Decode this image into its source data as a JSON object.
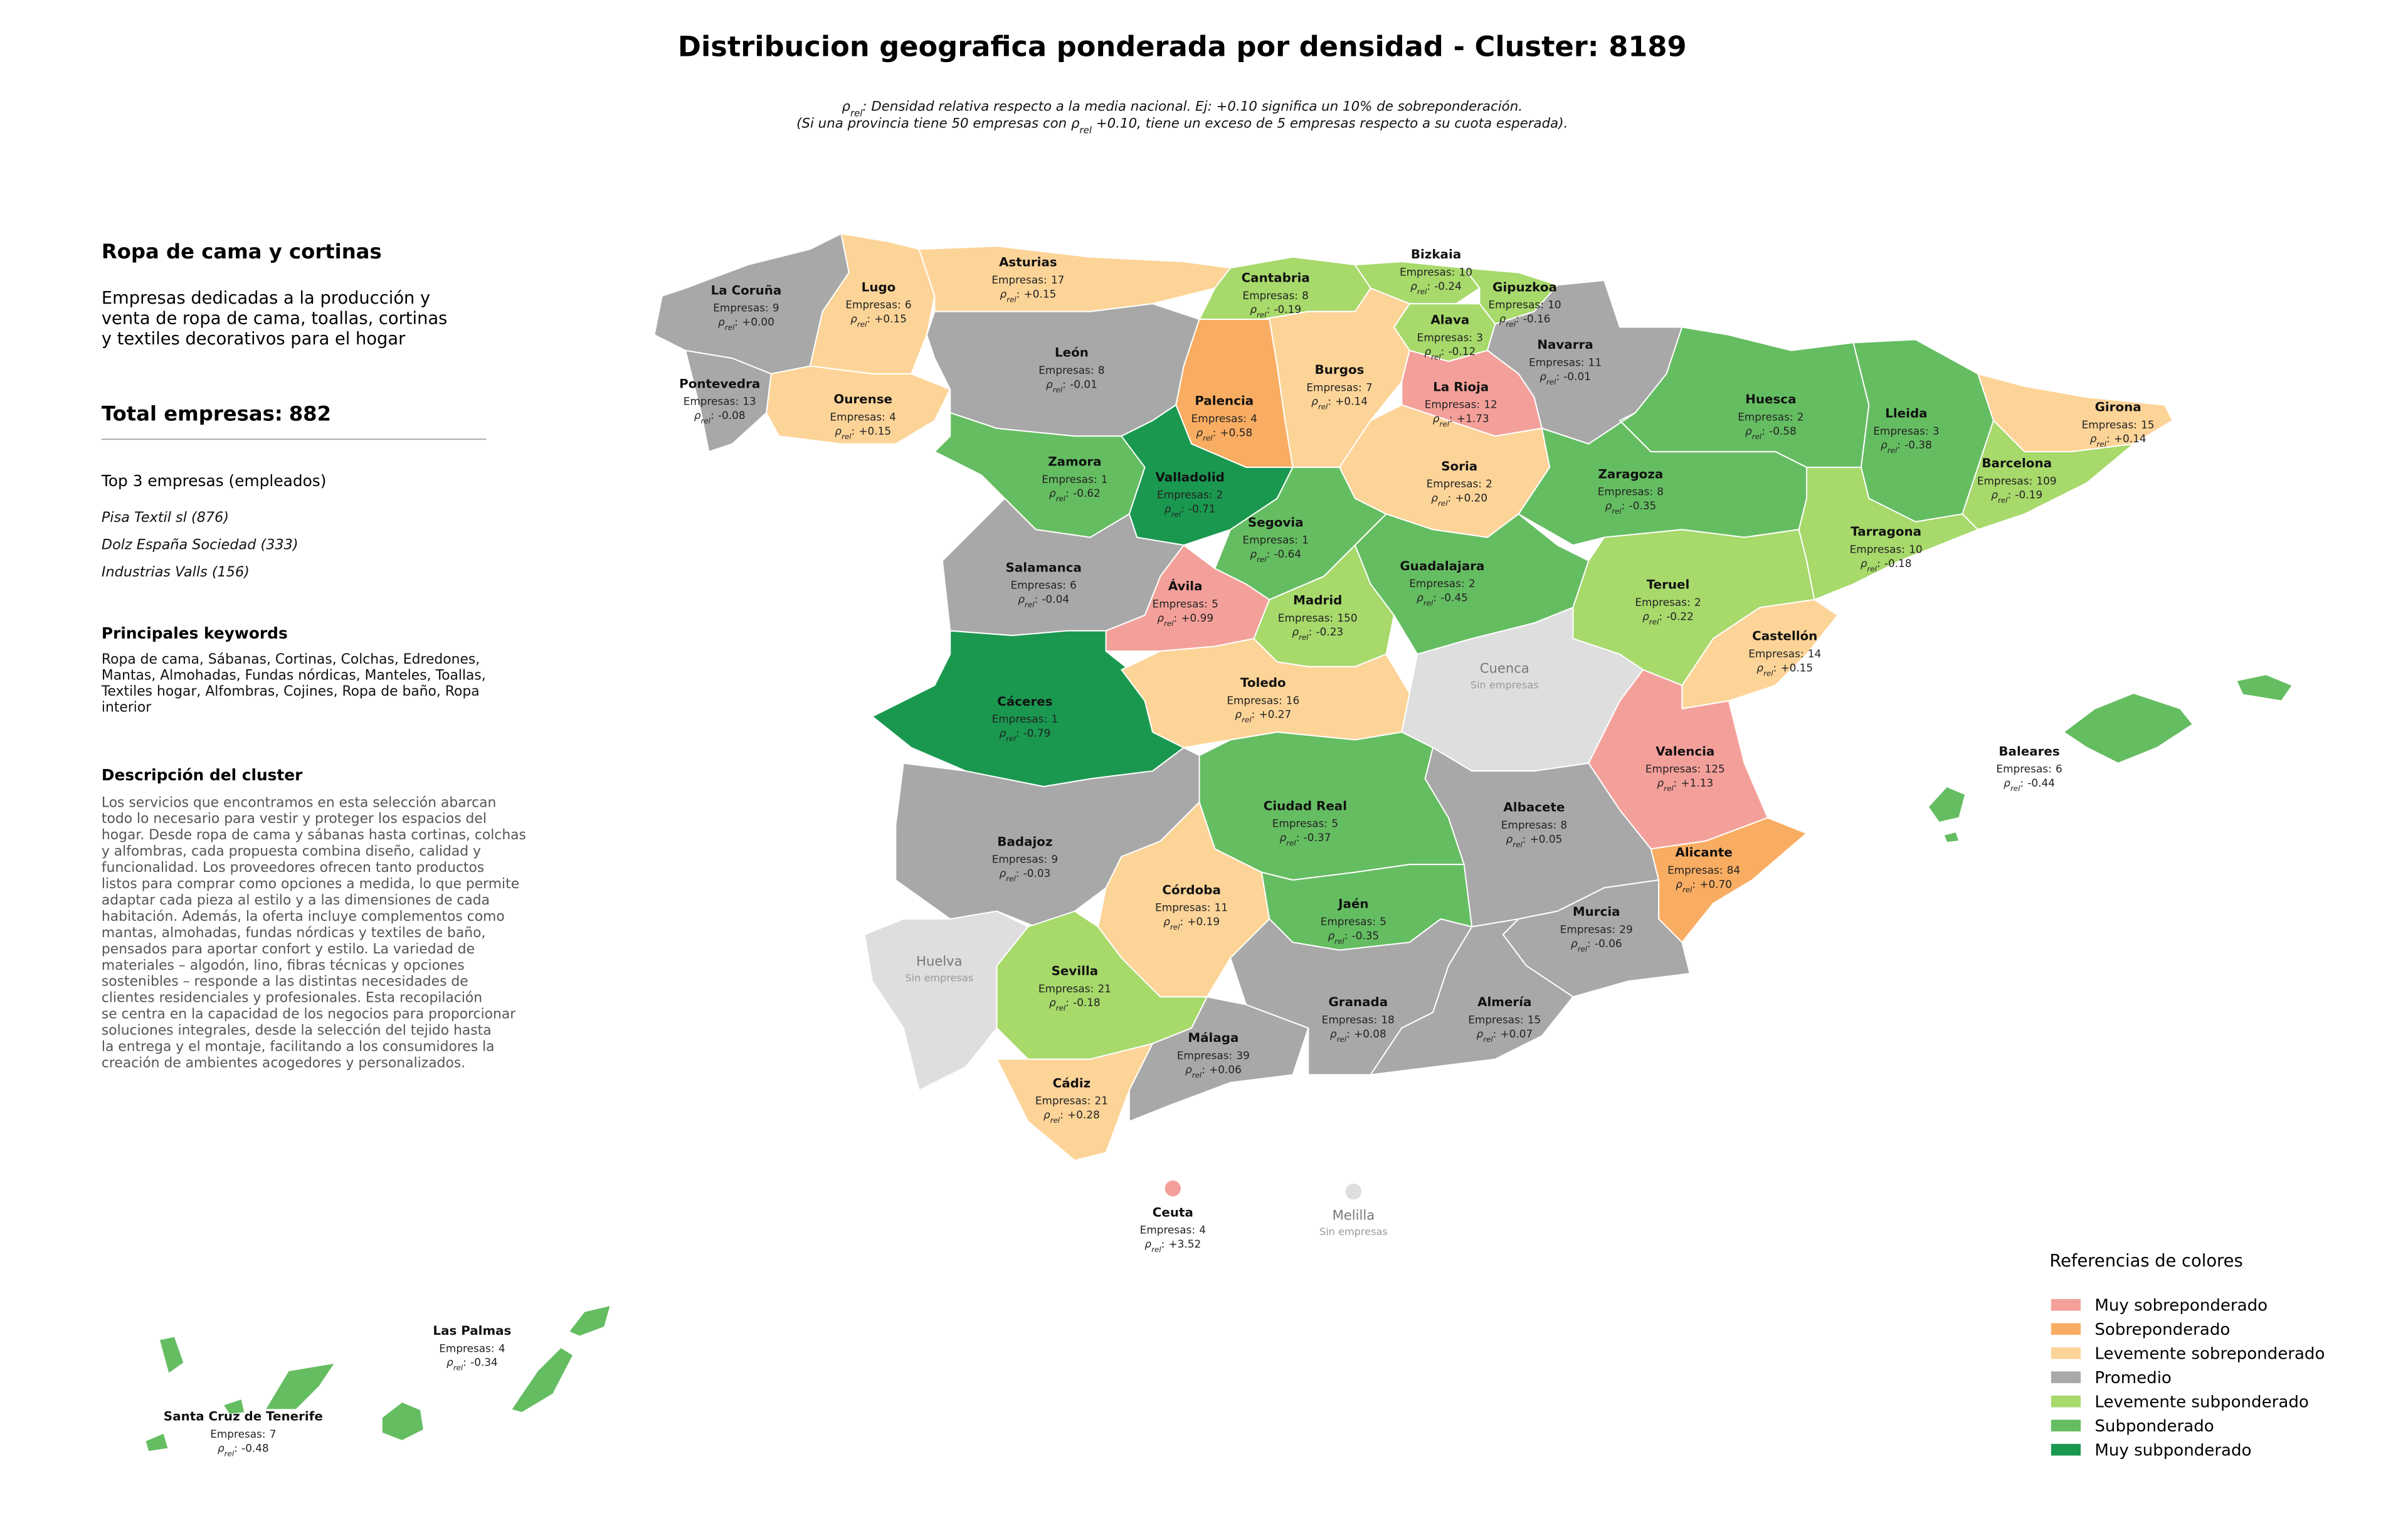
{
  "title": "Distribucion geografica ponderada por densidad - Cluster: 8189",
  "subtitle": [
    [
      "ρ",
      "rel",
      ": Densidad relativa respecto a la media nacional. Ej: +0.10 significa un 10% de sobreponderación."
    ],
    [
      "(Si una provincia tiene 50 empresas con ρ",
      "rel",
      " +0.10, tiene un exceso de 5 empresas respecto a su cuota esperada)."
    ]
  ],
  "sidebar": {
    "heading": "Ropa de cama y cortinas",
    "description": [
      "Empresas dedicadas a la producción y",
      "venta de ropa de cama, toallas, cortinas",
      "y textiles decorativos para el hogar"
    ],
    "total_label": "Total empresas:",
    "total": 882,
    "top_heading": "Top 3 empresas (empleados)",
    "top": [
      "Pisa Textil sl (876)",
      "Dolz España Sociedad (333)",
      "Industrias Valls (156)"
    ],
    "keywords_heading": "Principales keywords",
    "keywords": [
      "Ropa de cama, Sábanas, Cortinas, Colchas, Edredones,",
      "Mantas, Almohadas, Fundas nórdicas, Manteles, Toallas,",
      "Textiles hogar, Alfombras, Cojines, Ropa de baño, Ropa",
      "interior"
    ],
    "cluster_heading": "Descripción del cluster",
    "cluster_text": [
      "Los servicios que encontramos en esta selección abarcan",
      "todo lo necesario para vestir y proteger los espacios del",
      "hogar. Desde ropa de cama y sábanas hasta cortinas, colchas",
      "y alfombras, cada propuesta combina diseño, calidad y",
      "funcionalidad. Los proveedores ofrecen tanto productos",
      "listos para comprar como opciones a medida, lo que permite",
      "adaptar cada pieza al estilo y a las dimensiones de cada",
      "habitación. Además, la oferta incluye complementos como",
      "mantas, almohadas, fundas nórdicas y textiles de baño,",
      "pensados para aportar confort y estilo. La variedad de",
      "materiales – algodón, lino, fibras técnicas y opciones",
      "sostenibles – responde a las distintas necesidades de",
      "clientes residenciales y profesionales. Esta recopilación",
      "se centra en la capacidad de los negocios para proporcionar",
      "soluciones integrales, desde la selección del tejido hasta",
      "la entrega y el montaje, facilitando a los consumidores la",
      "creación de ambientes acogedores y personalizados."
    ]
  },
  "labels": {
    "empresas": "Empresas:",
    "rho": "ρ",
    "rho_sub": "rel",
    "rho_sep": ":",
    "no_data": "Sin empresas"
  },
  "map": {
    "no_data_color": "#dedede"
  },
  "legend": {
    "title": "Referencias de colores",
    "items": [
      {
        "name": "Muy sobreponderado",
        "color": "#f4a09a"
      },
      {
        "name": "Sobreponderado",
        "color": "#f9ad62"
      },
      {
        "name": "Levemente sobreponderado",
        "color": "#fdd498"
      },
      {
        "name": "Promedio",
        "color": "#a8a8a8"
      },
      {
        "name": "Levemente subponderado",
        "color": "#a7d96b"
      },
      {
        "name": "Subponderado",
        "color": "#65bd62"
      },
      {
        "name": "Muy subponderado",
        "color": "#1a9850"
      }
    ]
  },
  "provinces": [
    {
      "name": "La Coruña",
      "empresas": 9,
      "rho": "+0.00",
      "category": "Promedio"
    },
    {
      "name": "Pontevedra",
      "empresas": 13,
      "rho": "-0.08",
      "category": "Promedio"
    },
    {
      "name": "Lugo",
      "empresas": 6,
      "rho": "+0.15",
      "category": "Levemente sobreponderado"
    },
    {
      "name": "Ourense",
      "empresas": 4,
      "rho": "+0.15",
      "category": "Levemente sobreponderado"
    },
    {
      "name": "Asturias",
      "empresas": 17,
      "rho": "+0.15",
      "category": "Levemente sobreponderado"
    },
    {
      "name": "León",
      "empresas": 8,
      "rho": "-0.01",
      "category": "Promedio"
    },
    {
      "name": "Cantabria",
      "empresas": 8,
      "rho": "-0.19",
      "category": "Levemente subponderado"
    },
    {
      "name": "Bizkaia",
      "empresas": 10,
      "rho": "-0.24",
      "category": "Levemente subponderado"
    },
    {
      "name": "Gipuzkoa",
      "empresas": 10,
      "rho": "-0.16",
      "category": "Levemente subponderado"
    },
    {
      "name": "Alava",
      "empresas": 3,
      "rho": "-0.12",
      "category": "Levemente subponderado"
    },
    {
      "name": "Navarra",
      "empresas": 11,
      "rho": "-0.01",
      "category": "Promedio"
    },
    {
      "name": "Burgos",
      "empresas": 7,
      "rho": "+0.14",
      "category": "Levemente sobreponderado"
    },
    {
      "name": "Palencia",
      "empresas": 4,
      "rho": "+0.58",
      "category": "Sobreponderado"
    },
    {
      "name": "La Rioja",
      "empresas": 12,
      "rho": "+1.73",
      "category": "Muy sobreponderado"
    },
    {
      "name": "Soria",
      "empresas": 2,
      "rho": "+0.20",
      "category": "Levemente sobreponderado"
    },
    {
      "name": "Zamora",
      "empresas": 1,
      "rho": "-0.62",
      "category": "Subponderado"
    },
    {
      "name": "Valladolid",
      "empresas": 2,
      "rho": "-0.71",
      "category": "Muy subponderado"
    },
    {
      "name": "Segovia",
      "empresas": 1,
      "rho": "-0.64",
      "category": "Subponderado"
    },
    {
      "name": "Salamanca",
      "empresas": 6,
      "rho": "-0.04",
      "category": "Promedio"
    },
    {
      "name": "Ávila",
      "empresas": 5,
      "rho": "+0.99",
      "category": "Muy sobreponderado"
    },
    {
      "name": "Madrid",
      "empresas": 150,
      "rho": "-0.23",
      "category": "Levemente subponderado"
    },
    {
      "name": "Guadalajara",
      "empresas": 2,
      "rho": "-0.45",
      "category": "Subponderado"
    },
    {
      "name": "Huesca",
      "empresas": 2,
      "rho": "-0.58",
      "category": "Subponderado"
    },
    {
      "name": "Lleida",
      "empresas": 3,
      "rho": "-0.38",
      "category": "Subponderado"
    },
    {
      "name": "Girona",
      "empresas": 15,
      "rho": "+0.14",
      "category": "Levemente sobreponderado"
    },
    {
      "name": "Barcelona",
      "empresas": 109,
      "rho": "-0.19",
      "category": "Levemente subponderado"
    },
    {
      "name": "Tarragona",
      "empresas": 10,
      "rho": "-0.18",
      "category": "Levemente subponderado"
    },
    {
      "name": "Zaragoza",
      "empresas": 8,
      "rho": "-0.35",
      "category": "Subponderado"
    },
    {
      "name": "Teruel",
      "empresas": 2,
      "rho": "-0.22",
      "category": "Levemente subponderado"
    },
    {
      "name": "Castellón",
      "empresas": 14,
      "rho": "+0.15",
      "category": "Levemente sobreponderado"
    },
    {
      "name": "Cuenca"
    },
    {
      "name": "Cáceres",
      "empresas": 1,
      "rho": "-0.79",
      "category": "Muy subponderado"
    },
    {
      "name": "Toledo",
      "empresas": 16,
      "rho": "+0.27",
      "category": "Levemente sobreponderado"
    },
    {
      "name": "Valencia",
      "empresas": 125,
      "rho": "+1.13",
      "category": "Muy sobreponderado"
    },
    {
      "name": "Albacete",
      "empresas": 8,
      "rho": "+0.05",
      "category": "Promedio"
    },
    {
      "name": "Ciudad Real",
      "empresas": 5,
      "rho": "-0.37",
      "category": "Subponderado"
    },
    {
      "name": "Badajoz",
      "empresas": 9,
      "rho": "-0.03",
      "category": "Promedio"
    },
    {
      "name": "Alicante",
      "empresas": 84,
      "rho": "+0.70",
      "category": "Sobreponderado"
    },
    {
      "name": "Murcia",
      "empresas": 29,
      "rho": "-0.06",
      "category": "Promedio"
    },
    {
      "name": "Córdoba",
      "empresas": 11,
      "rho": "+0.19",
      "category": "Levemente sobreponderado"
    },
    {
      "name": "Jaén",
      "empresas": 5,
      "rho": "-0.35",
      "category": "Subponderado"
    },
    {
      "name": "Huelva"
    },
    {
      "name": "Sevilla",
      "empresas": 21,
      "rho": "-0.18",
      "category": "Levemente subponderado"
    },
    {
      "name": "Cádiz",
      "empresas": 21,
      "rho": "+0.28",
      "category": "Levemente sobreponderado"
    },
    {
      "name": "Málaga",
      "empresas": 39,
      "rho": "+0.06",
      "category": "Promedio"
    },
    {
      "name": "Granada",
      "empresas": 18,
      "rho": "+0.08",
      "category": "Promedio"
    },
    {
      "name": "Almería",
      "empresas": 15,
      "rho": "+0.07",
      "category": "Promedio"
    },
    {
      "name": "Baleares",
      "empresas": 6,
      "rho": "-0.44",
      "category": "Subponderado"
    },
    {
      "name": "Las Palmas",
      "empresas": 4,
      "rho": "-0.34",
      "category": "Subponderado"
    },
    {
      "name": "Santa Cruz de Tenerife",
      "empresas": 7,
      "rho": "-0.48",
      "category": "Subponderado"
    },
    {
      "name": "Ceuta",
      "empresas": 4,
      "rho": "+3.52",
      "category": "Muy sobreponderado"
    },
    {
      "name": "Melilla"
    }
  ]
}
